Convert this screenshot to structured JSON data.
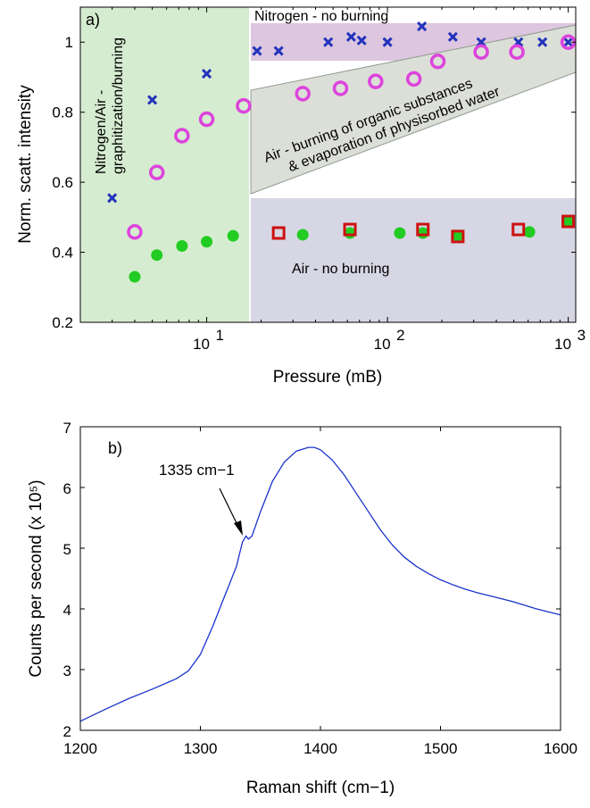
{
  "colors": {
    "green_region": "#d6ecd0",
    "purple_region": "#ddc6df",
    "lavender_region": "#d6d6e4",
    "gray_band": "#dcdfd8",
    "air_burning": "#dd44dd",
    "nitrogen": "#2233bb",
    "air_no_burning": "#22cc22",
    "squares": "#cc1111",
    "spectrum": "#1a33cc"
  },
  "chart_data": [
    {
      "type": "scatter",
      "panel_label": "a)",
      "xlabel": "Pressure (mB)",
      "ylabel": "Norm. scatt. intensity",
      "xscale": "log",
      "xlim": [
        2,
        1100
      ],
      "ylim": [
        0.2,
        1.1
      ],
      "x_ticks": [
        {
          "v": 10,
          "base": "10",
          "exp": "1"
        },
        {
          "v": 100,
          "base": "10",
          "exp": "2"
        },
        {
          "v": 1000,
          "base": "10",
          "exp": "3"
        }
      ],
      "y_ticks": [
        "0.2",
        "0.4",
        "0.6",
        "0.8",
        "1"
      ],
      "regions": [
        {
          "label": "Nitrogen/Air -\ngraphitization/burning"
        },
        {
          "label": "Nitrogen - no burning"
        },
        {
          "label": "Air - burning of organic substances\n& evaporation of physisorbed water"
        },
        {
          "label": "Air - no burning"
        }
      ],
      "series": [
        {
          "marker": "x",
          "points": [
            [
              3.0,
              0.555
            ],
            [
              5.0,
              0.835
            ],
            [
              10.0,
              0.91
            ],
            [
              19.0,
              0.975
            ],
            [
              25.0,
              0.975
            ],
            [
              47.0,
              1.0
            ],
            [
              63.0,
              1.015
            ],
            [
              72.0,
              1.005
            ],
            [
              100.0,
              1.0
            ],
            [
              155.0,
              1.045
            ],
            [
              230.0,
              1.015
            ],
            [
              330.0,
              1.0
            ],
            [
              530.0,
              1.0
            ],
            [
              720.0,
              1.0
            ],
            [
              1000.0,
              1.0
            ]
          ]
        },
        {
          "marker": "open-circle",
          "points": [
            [
              4.0,
              0.458
            ],
            [
              5.3,
              0.628
            ],
            [
              7.3,
              0.733
            ],
            [
              10.0,
              0.78
            ],
            [
              16.0,
              0.818
            ],
            [
              34.0,
              0.853
            ],
            [
              55.0,
              0.868
            ],
            [
              86.0,
              0.888
            ],
            [
              140.0,
              0.895
            ],
            [
              190.0,
              0.945
            ],
            [
              330.0,
              0.972
            ],
            [
              520.0,
              0.972
            ],
            [
              1000.0,
              1.0
            ]
          ]
        },
        {
          "marker": "filled-circle",
          "points": [
            [
              4.0,
              0.33
            ],
            [
              5.3,
              0.392
            ],
            [
              7.3,
              0.418
            ],
            [
              10.0,
              0.43
            ],
            [
              14.0,
              0.447
            ],
            [
              34.0,
              0.45
            ],
            [
              62.0,
              0.455
            ],
            [
              117.0,
              0.455
            ],
            [
              157.0,
              0.455
            ],
            [
              245.0,
              0.448
            ],
            [
              610.0,
              0.458
            ],
            [
              1000.0,
              0.488
            ]
          ]
        },
        {
          "marker": "open-square",
          "points": [
            [
              25.0,
              0.455
            ],
            [
              62.0,
              0.465
            ],
            [
              157.0,
              0.465
            ],
            [
              245.0,
              0.445
            ],
            [
              530.0,
              0.465
            ],
            [
              1000.0,
              0.488
            ]
          ]
        }
      ]
    },
    {
      "type": "line",
      "panel_label": "b)",
      "xlabel": "Raman shift (cm−1)",
      "ylabel": "Counts per second (x 10⁵)",
      "xlim": [
        1200,
        1600
      ],
      "ylim": [
        2,
        7
      ],
      "x_ticks": [
        "1200",
        "1300",
        "1400",
        "1500",
        "1600"
      ],
      "y_ticks": [
        "2",
        "3",
        "4",
        "5",
        "6",
        "7"
      ],
      "annotation": "1335 cm−1",
      "x": [
        1200,
        1220,
        1240,
        1260,
        1280,
        1290,
        1300,
        1310,
        1320,
        1330,
        1335,
        1338,
        1340,
        1343,
        1350,
        1360,
        1370,
        1380,
        1390,
        1395,
        1400,
        1410,
        1420,
        1430,
        1440,
        1450,
        1460,
        1470,
        1480,
        1490,
        1500,
        1510,
        1520,
        1530,
        1540,
        1550,
        1560,
        1570,
        1580,
        1590,
        1600
      ],
      "y": [
        2.15,
        2.34,
        2.52,
        2.68,
        2.85,
        2.98,
        3.25,
        3.7,
        4.2,
        4.7,
        5.1,
        5.2,
        5.15,
        5.2,
        5.6,
        6.1,
        6.42,
        6.6,
        6.66,
        6.66,
        6.62,
        6.45,
        6.2,
        5.9,
        5.6,
        5.3,
        5.05,
        4.85,
        4.7,
        4.58,
        4.48,
        4.4,
        4.33,
        4.27,
        4.22,
        4.17,
        4.12,
        4.06,
        4.0,
        3.95,
        3.9
      ]
    }
  ]
}
